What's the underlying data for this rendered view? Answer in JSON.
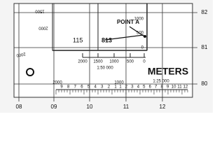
{
  "grid": {
    "eastings": [
      "08",
      "09",
      "10",
      "11",
      "12"
    ],
    "northings": [
      "82",
      "81",
      "80"
    ]
  },
  "point": {
    "label": "POINT A",
    "easting_reading": "115",
    "northing_reading": "813"
  },
  "scale_50000": {
    "label": "1:50 000",
    "horizontal_ticks": [
      "2000",
      "1500",
      "1000",
      "500",
      "0"
    ],
    "vertical_ticks": [
      "1000",
      "500",
      "0"
    ]
  },
  "scale_25000": {
    "label": "1:25 000",
    "left_label": "2000",
    "mid_label": "1000",
    "left_digits": [
      "9",
      "8",
      "7",
      "6",
      "5",
      "4",
      "3",
      "2",
      "1"
    ],
    "right_digits": [
      "1",
      "2",
      "3",
      "4",
      "5",
      "6",
      "7",
      "8",
      "9",
      "10",
      "11",
      "12"
    ]
  },
  "units": "METERS",
  "inverted_labels": [
    "1500",
    "2000"
  ],
  "side_label": "2000"
}
